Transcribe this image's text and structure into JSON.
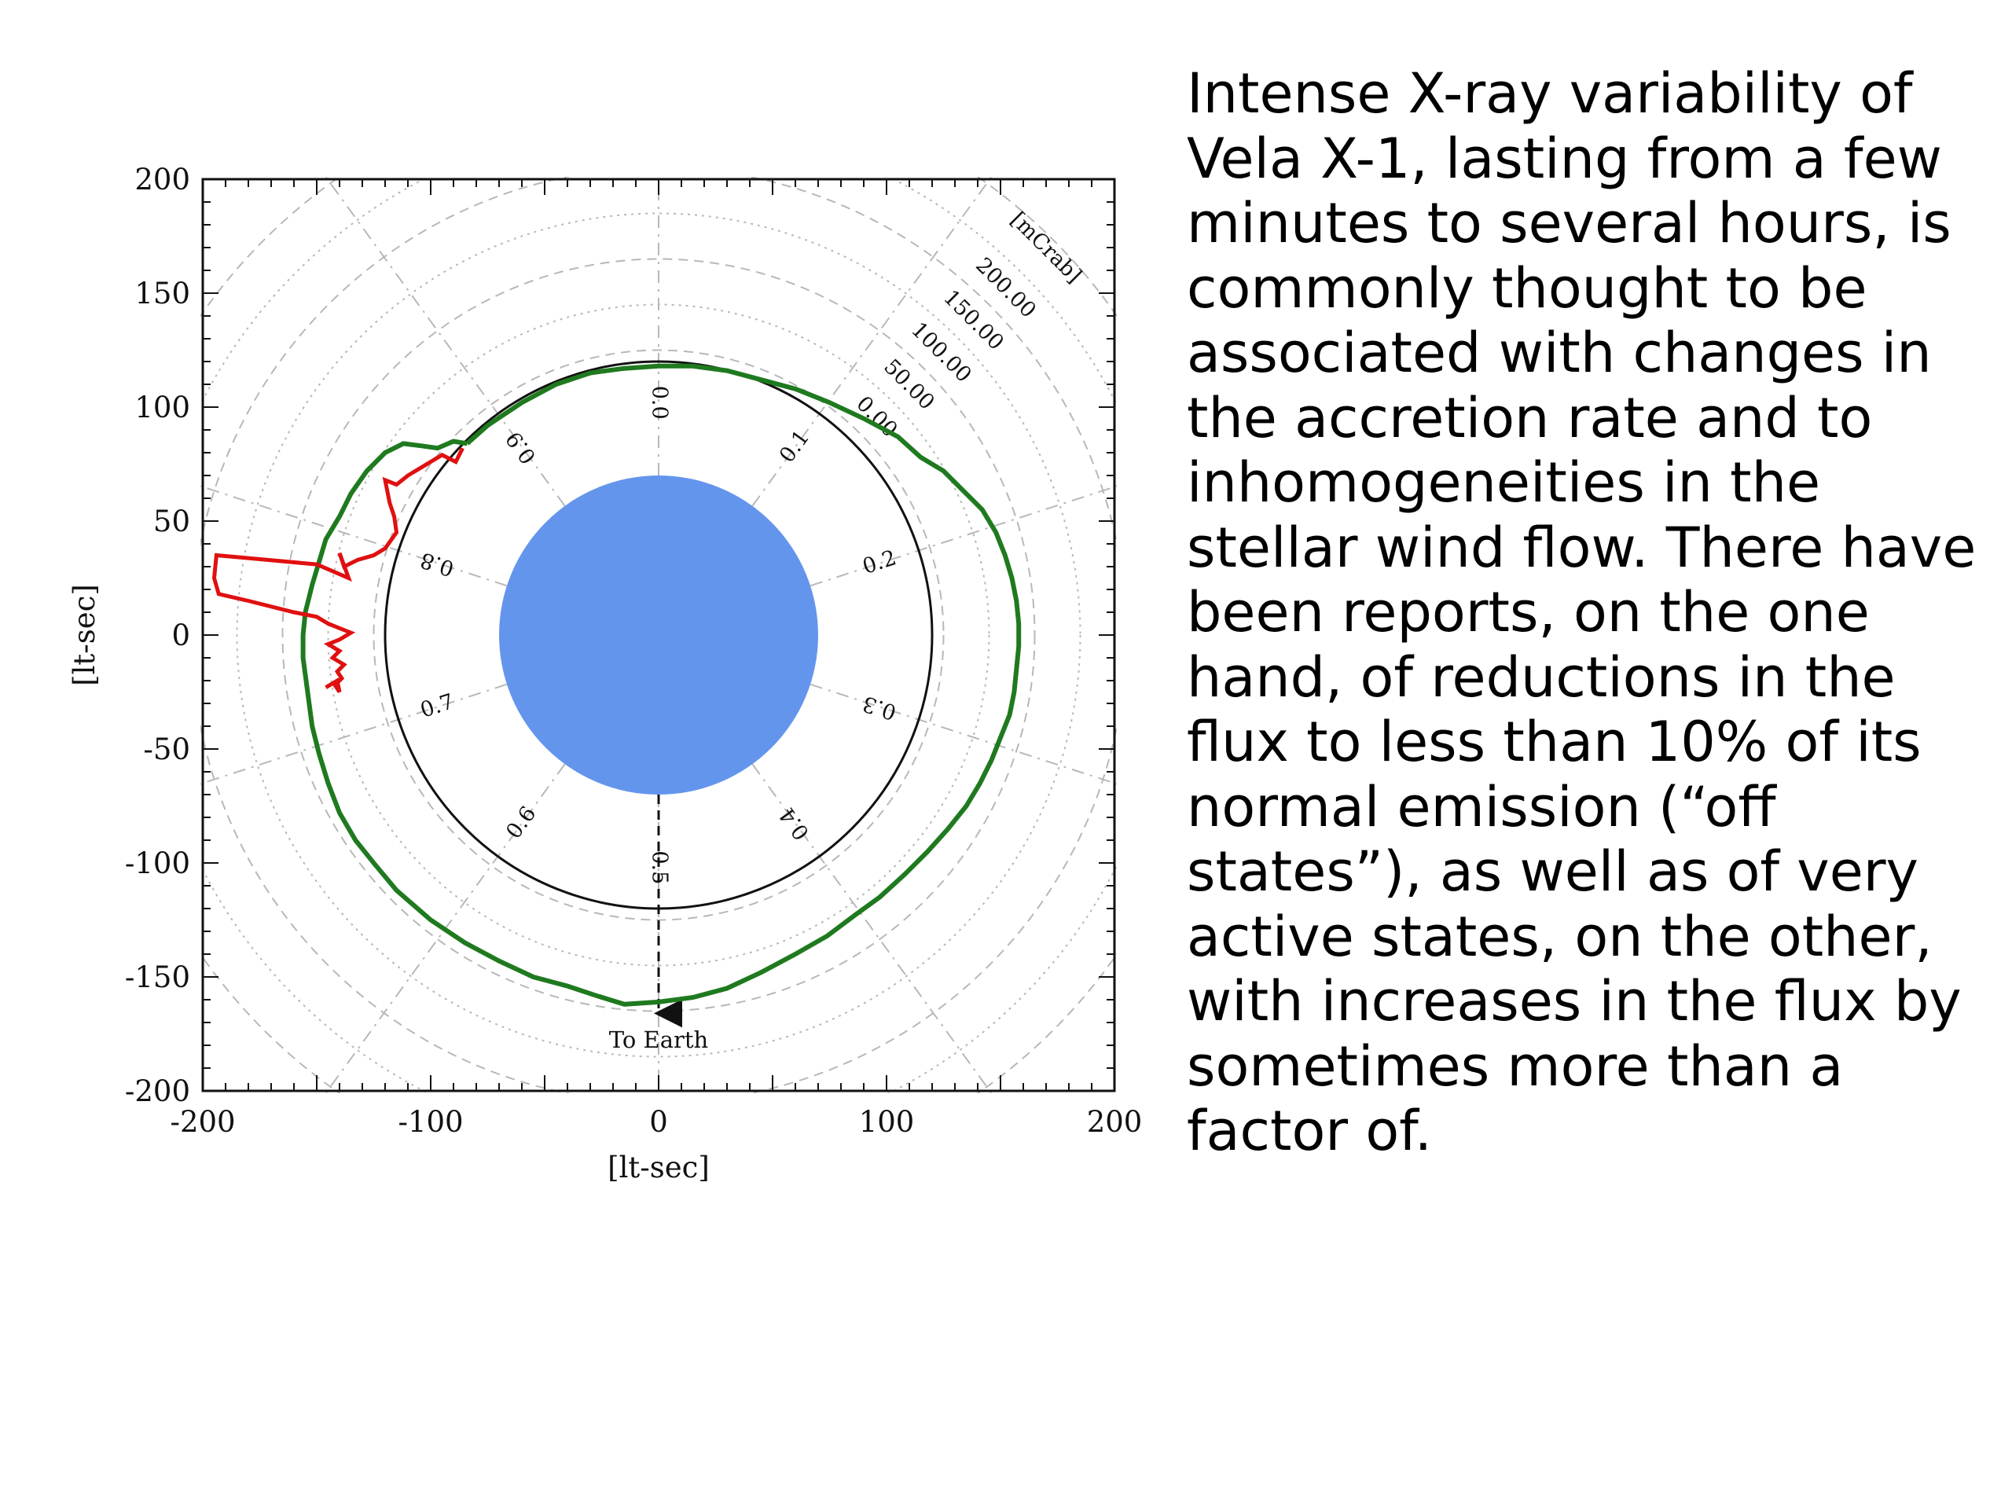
{
  "caption": "Intense X-ray variability of\nVela X-1, lasting from a few\nminutes to several hours, is\ncommonly thought to be\nassociated with changes in\nthe accretion rate and to\ninhomogeneities in the\nstellar wind flow. There have\nbeen reports, on the one\nhand, of reductions in the\nflux to less than 10% of its\nnormal emission (“off\nstates”), as well as of very\nactive states, on the other,\nwith increases in the flux by\nsometimes more than a\nfactor of.",
  "chart_data": {
    "type": "polar-orbit",
    "xlabel": "[lt-sec]",
    "ylabel": "[lt-sec]",
    "xlim": [
      -200,
      200
    ],
    "ylim": [
      -200,
      200
    ],
    "xticks": [
      "-200",
      "-100",
      "0",
      "100",
      "200"
    ],
    "yticks": [
      "200",
      "150",
      "100",
      "50",
      "0",
      "-50",
      "-100",
      "-150",
      "-200"
    ],
    "grid": true,
    "flux_unit_label": "[mCrab]",
    "flux_ring_labels": [
      "200.00",
      "150.00",
      "100.00",
      "50.00",
      "0.00"
    ],
    "orbital_phase_labels": [
      "0.0",
      "0.1",
      "0.2",
      "0.3",
      "0.4",
      "0.5",
      "0.6",
      "0.7",
      "0.8",
      "0.9"
    ],
    "earth_label": "To Earth",
    "colors": {
      "star": "#6495ED",
      "orbit": "#111111",
      "flux_green": "#1F7A1F",
      "flux_red": "#E01010",
      "grid": "#B8B8B8"
    },
    "star_radius": 70,
    "orbit_radius": 120,
    "flux_curve_green": [
      [
        -84,
        84
      ],
      [
        -75,
        92
      ],
      [
        -60,
        102
      ],
      [
        -45,
        110
      ],
      [
        -30,
        115
      ],
      [
        -15,
        117
      ],
      [
        0,
        118
      ],
      [
        15,
        118
      ],
      [
        30,
        116
      ],
      [
        45,
        112
      ],
      [
        60,
        108
      ],
      [
        75,
        102
      ],
      [
        90,
        95
      ],
      [
        105,
        87
      ],
      [
        115,
        78
      ],
      [
        125,
        72
      ],
      [
        135,
        62
      ],
      [
        142,
        55
      ],
      [
        148,
        45
      ],
      [
        152,
        35
      ],
      [
        155,
        25
      ],
      [
        157,
        15
      ],
      [
        158,
        5
      ],
      [
        158,
        -5
      ],
      [
        157,
        -15
      ],
      [
        156,
        -25
      ],
      [
        154,
        -35
      ],
      [
        150,
        -45
      ],
      [
        146,
        -55
      ],
      [
        141,
        -65
      ],
      [
        135,
        -75
      ],
      [
        127,
        -85
      ],
      [
        118,
        -95
      ],
      [
        108,
        -105
      ],
      [
        97,
        -115
      ],
      [
        86,
        -123
      ],
      [
        74,
        -132
      ],
      [
        60,
        -140
      ],
      [
        45,
        -148
      ],
      [
        30,
        -155
      ],
      [
        15,
        -159
      ],
      [
        0,
        -161
      ],
      [
        -15,
        -162
      ],
      [
        -28,
        -158
      ],
      [
        -40,
        -154
      ],
      [
        -55,
        -150
      ],
      [
        -70,
        -143
      ],
      [
        -85,
        -135
      ],
      [
        -100,
        -125
      ],
      [
        -115,
        -112
      ],
      [
        -125,
        -100
      ],
      [
        -133,
        -90
      ],
      [
        -140,
        -78
      ],
      [
        -145,
        -65
      ],
      [
        -149,
        -52
      ],
      [
        -152,
        -40
      ],
      [
        -154,
        -25
      ],
      [
        -156,
        -10
      ],
      [
        -156,
        0
      ],
      [
        -155,
        10
      ],
      [
        -152,
        22
      ],
      [
        -149,
        32
      ],
      [
        -146,
        42
      ],
      [
        -140,
        52
      ],
      [
        -135,
        62
      ],
      [
        -128,
        72
      ],
      [
        -120,
        80
      ],
      [
        -112,
        84
      ],
      [
        -104,
        83
      ],
      [
        -97,
        82
      ],
      [
        -90,
        85
      ],
      [
        -84,
        84
      ]
    ],
    "flux_curve_red": [
      [
        -86,
        82
      ],
      [
        -89,
        76
      ],
      [
        -95,
        79
      ],
      [
        -105,
        73
      ],
      [
        -110,
        70
      ],
      [
        -115,
        66
      ],
      [
        -120,
        68
      ],
      [
        -118,
        58
      ],
      [
        -116,
        52
      ],
      [
        -115,
        45
      ],
      [
        -120,
        38
      ],
      [
        -125,
        35
      ],
      [
        -132,
        33
      ],
      [
        -138,
        30
      ],
      [
        -140,
        36
      ],
      [
        -136,
        25
      ],
      [
        -150,
        31
      ],
      [
        -172,
        33
      ],
      [
        -194,
        35
      ],
      [
        -195,
        25
      ],
      [
        -193,
        18
      ],
      [
        -180,
        15
      ],
      [
        -160,
        10
      ],
      [
        -150,
        8
      ],
      [
        -145,
        5
      ],
      [
        -140,
        3
      ],
      [
        -135,
        1
      ],
      [
        -140,
        -2
      ],
      [
        -145,
        -4
      ],
      [
        -140,
        -7
      ],
      [
        -143,
        -10
      ],
      [
        -138,
        -13
      ],
      [
        -141,
        -16
      ],
      [
        -139,
        -19
      ],
      [
        -142,
        -22
      ],
      [
        -140,
        -25
      ],
      [
        -141,
        -20
      ],
      [
        -146,
        -23
      ]
    ]
  }
}
